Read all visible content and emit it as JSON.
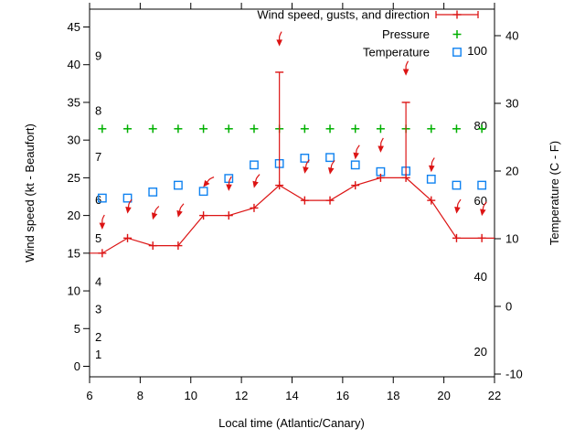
{
  "colors": {
    "wind": "#dc1414",
    "pressure": "#00b000",
    "temperature": "#0f82f0",
    "axis": "#000000",
    "background": "#ffffff"
  },
  "legend": {
    "entries": [
      {
        "label": "Wind speed, gusts, and direction",
        "marker": "errorbar-line",
        "color_key": "wind"
      },
      {
        "label": "Pressure",
        "marker": "plus",
        "color_key": "pressure"
      },
      {
        "label": "Temperature",
        "marker": "square",
        "color_key": "temperature"
      }
    ]
  },
  "axes": {
    "x": {
      "label": "Local time (Atlantic/Canary)",
      "ticks": [
        6,
        8,
        10,
        12,
        14,
        16,
        18,
        20,
        22
      ],
      "range": [
        6,
        22
      ]
    },
    "y_left": {
      "label": "Wind speed (kt - Beaufort)",
      "ticks": [
        0,
        5,
        10,
        15,
        20,
        25,
        30,
        35,
        40,
        45
      ],
      "range": [
        -1.4,
        47.4
      ],
      "beaufort": [
        {
          "n": "1",
          "kt": 1.6
        },
        {
          "n": "2",
          "kt": 3.9
        },
        {
          "n": "3",
          "kt": 7.6
        },
        {
          "n": "4",
          "kt": 11.2
        },
        {
          "n": "5",
          "kt": 17.0
        },
        {
          "n": "6",
          "kt": 22.1
        },
        {
          "n": "7",
          "kt": 27.8
        },
        {
          "n": "8",
          "kt": 33.9
        },
        {
          "n": "9",
          "kt": 41.2
        }
      ]
    },
    "y_right": {
      "label": "Temperature (C - F)",
      "ticks": [
        -10,
        0,
        10,
        20,
        30,
        40
      ],
      "range": [
        -10.4,
        43.9
      ],
      "fahrenheit": [
        {
          "f": "20",
          "c": -6.7
        },
        {
          "f": "40",
          "c": 4.4
        },
        {
          "f": "60",
          "c": 15.6
        },
        {
          "f": "80",
          "c": 26.7
        },
        {
          "f": "100",
          "c": 37.8
        }
      ]
    }
  },
  "chart_data": {
    "type": "line",
    "title": "Wind speed, gusts, and direction / Pressure / Temperature",
    "xlabel": "Local time (Atlantic/Canary)",
    "ylabel_left": "Wind speed (kt - Beaufort)",
    "ylabel_right": "Temperature (C - F)",
    "x_hours": [
      6.5,
      7.5,
      8.5,
      9.5,
      10.5,
      11.5,
      12.5,
      13.5,
      14.5,
      15.5,
      16.5,
      17.5,
      18.5,
      19.5,
      20.5,
      21.5
    ],
    "series": [
      {
        "name": "Wind speed",
        "unit": "kt",
        "axis": "left",
        "color_key": "wind",
        "marker": "plus",
        "values": [
          15,
          17,
          16,
          16,
          20,
          20,
          21,
          24,
          22,
          22,
          24,
          25,
          25,
          22,
          17,
          17
        ]
      },
      {
        "name": "Wind gust",
        "unit": "kt",
        "axis": "left",
        "color_key": "wind",
        "marker": "errorbar-cap",
        "values": [
          null,
          null,
          null,
          null,
          null,
          null,
          null,
          39,
          null,
          null,
          null,
          null,
          35,
          null,
          null,
          null
        ]
      },
      {
        "name": "Wind direction arrows",
        "axis": "left",
        "color_key": "wind",
        "marker": "arrow-down",
        "tip_kt": [
          18.2,
          20.3,
          19.5,
          19.8,
          23.8,
          23.3,
          23.7,
          42.5,
          25.6,
          25.5,
          27.5,
          28.4,
          38.6,
          25.8,
          20.3,
          20.0
        ],
        "tilt_deg": [
          0,
          8,
          16,
          14,
          38,
          2,
          14,
          0,
          10,
          10,
          8,
          2,
          0,
          4,
          8,
          10
        ]
      },
      {
        "name": "Temperature",
        "unit": "C",
        "axis": "right",
        "color_key": "temperature",
        "marker": "square",
        "values": [
          16.0,
          16.0,
          16.9,
          17.9,
          17.0,
          18.9,
          20.9,
          21.1,
          21.9,
          22.0,
          20.9,
          19.9,
          20.0,
          18.8,
          17.9,
          17.9
        ]
      },
      {
        "name": "Pressure",
        "axis": "left",
        "color_key": "pressure",
        "marker": "plus",
        "note": "No numeric pressure scale visible; plotted as a flat row of markers",
        "display_row_kt": 31.5
      }
    ],
    "line_edge_extension": {
      "left_kt": 15,
      "right_kt": 17
    }
  }
}
